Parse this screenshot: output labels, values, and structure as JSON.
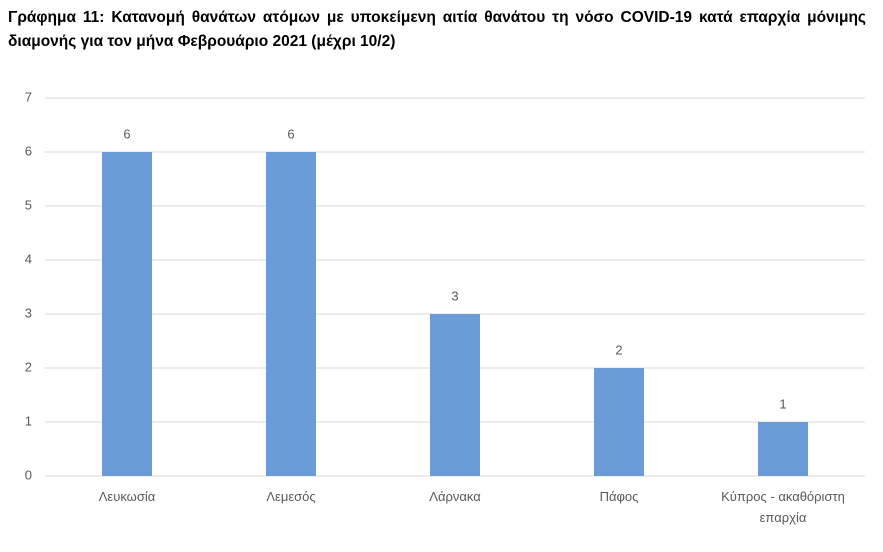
{
  "chart_data": {
    "type": "bar",
    "title": "Γράφημα 11: Κατανομή θανάτων ατόμων με υποκείμενη αιτία θανάτου τη νόσο COVID-19 κατά επαρχία μόνιμης διαμονής για τον μήνα Φεβρουάριο 2021 (μέχρι 10/2)",
    "categories": [
      "Λευκωσία",
      "Λεμεσός",
      "Λάρνακα",
      "Πάφος",
      "Κύπρος - ακαθόριστη επαρχία"
    ],
    "values": [
      6,
      6,
      3,
      2,
      1
    ],
    "color": "#6a9cd8",
    "ylim": [
      0,
      7
    ],
    "yticks": [
      0,
      1,
      2,
      3,
      4,
      5,
      6,
      7
    ],
    "grid": true
  }
}
